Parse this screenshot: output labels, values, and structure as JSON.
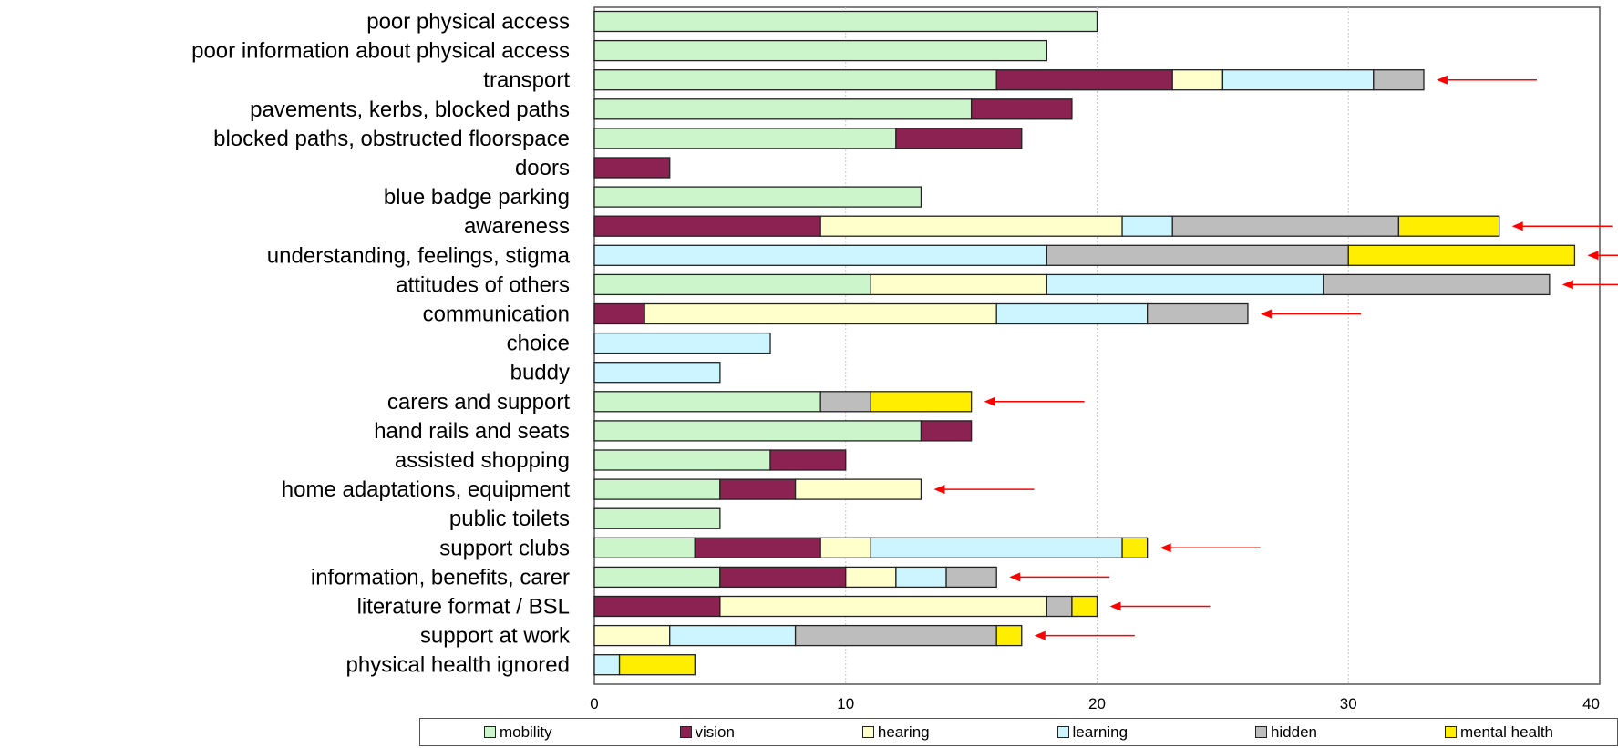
{
  "chart_data": {
    "type": "bar",
    "orientation": "horizontal",
    "stacked": true,
    "title": "",
    "xlabel": "",
    "ylabel": "",
    "xlim": [
      0,
      40
    ],
    "xticks": [
      0,
      10,
      20,
      30,
      40
    ],
    "grid": true,
    "legend_position": "bottom",
    "categories": [
      "poor physical access",
      "poor information about physical access",
      "transport",
      "pavements, kerbs, blocked paths",
      "blocked paths, obstructed floorspace",
      "doors",
      "blue badge parking",
      "awareness",
      "understanding, feelings, stigma",
      "attitudes of others",
      "communication",
      "choice",
      "buddy",
      "carers and support",
      "hand rails and seats",
      "assisted shopping",
      "home adaptations, equipment",
      "public toilets",
      "support clubs",
      "information, benefits, carer",
      "literature format / BSL",
      "support at work",
      "physical health ignored"
    ],
    "series": [
      {
        "name": "mobility",
        "color": "#ccf5cc",
        "values": [
          20,
          18,
          16,
          15,
          12,
          0,
          13,
          0,
          0,
          11,
          0,
          0,
          0,
          9,
          13,
          7,
          5,
          5,
          4,
          5,
          0,
          0,
          0
        ]
      },
      {
        "name": "vision",
        "color": "#8b2252",
        "values": [
          0,
          0,
          7,
          4,
          5,
          3,
          0,
          9,
          0,
          0,
          2,
          0,
          0,
          0,
          2,
          3,
          3,
          0,
          5,
          5,
          5,
          0,
          0
        ]
      },
      {
        "name": "hearing",
        "color": "#ffffcc",
        "values": [
          0,
          0,
          2,
          0,
          0,
          0,
          0,
          12,
          0,
          7,
          14,
          0,
          0,
          0,
          0,
          0,
          5,
          0,
          2,
          2,
          13,
          3,
          0
        ]
      },
      {
        "name": "learning",
        "color": "#ccf5ff",
        "values": [
          0,
          0,
          6,
          0,
          0,
          0,
          0,
          2,
          18,
          11,
          6,
          7,
          5,
          0,
          0,
          0,
          0,
          0,
          10,
          2,
          0,
          5,
          1
        ]
      },
      {
        "name": "hidden",
        "color": "#bdbdbd",
        "values": [
          0,
          0,
          2,
          0,
          0,
          0,
          0,
          9,
          12,
          9,
          4,
          0,
          0,
          2,
          0,
          0,
          0,
          0,
          0,
          2,
          1,
          8,
          0
        ]
      },
      {
        "name": "mental health",
        "color": "#ffee00",
        "values": [
          0,
          0,
          0,
          0,
          0,
          0,
          0,
          4,
          9,
          0,
          0,
          0,
          0,
          4,
          0,
          0,
          0,
          0,
          1,
          0,
          1,
          1,
          3
        ]
      }
    ],
    "annotations": {
      "arrow_color": "#ff0000",
      "arrowed_categories": [
        "transport",
        "awareness",
        "understanding, feelings, stigma",
        "attitudes of others",
        "communication",
        "carers and support",
        "home adaptations, equipment",
        "support clubs",
        "information, benefits, carer",
        "literature format / BSL",
        "support at work"
      ]
    }
  }
}
